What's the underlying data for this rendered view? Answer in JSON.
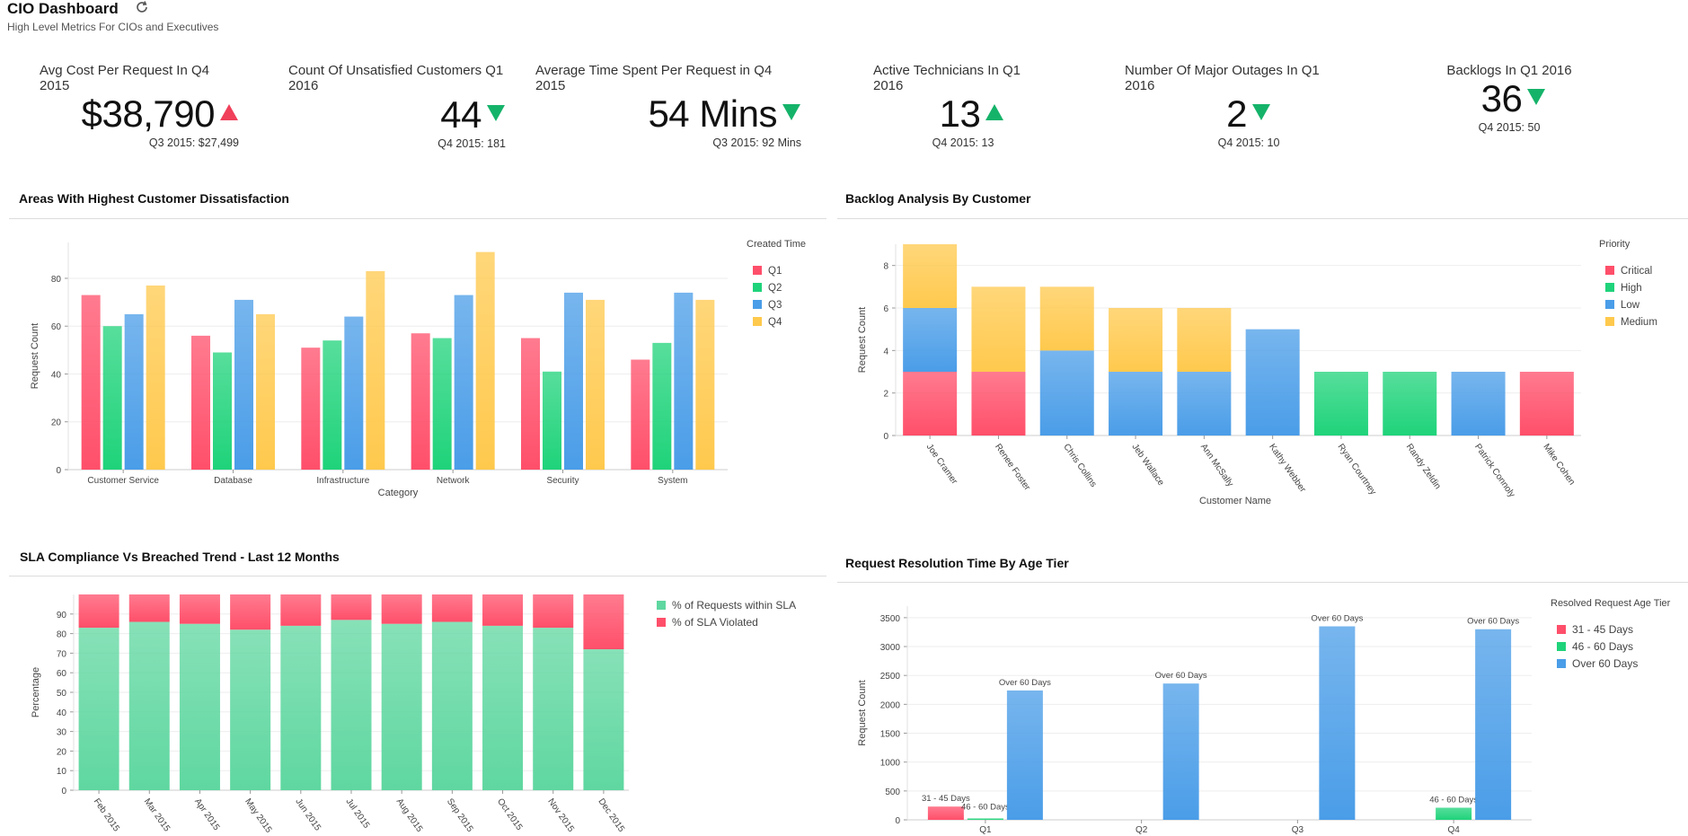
{
  "header": {
    "title": "CIO Dashboard",
    "subtitle": "High Level Metrics For CIOs and Executives"
  },
  "colors": {
    "q1": "#ff4f6a",
    "q2": "#1fd37a",
    "q3": "#4a9de8",
    "q4": "#ffc94d",
    "up": "#f0405a",
    "down": "#15b36a"
  },
  "kpis": [
    {
      "title": "Avg Cost Per Request In Q4 2015",
      "value": "$38,790",
      "trend": "up",
      "prev": "Q3 2015: $27,499"
    },
    {
      "title": "Count Of Unsatisfied Customers Q1 2016",
      "value": "44",
      "trend": "down",
      "prev": "Q4 2015: 181"
    },
    {
      "title": "Average Time Spent Per Request in Q4 2015",
      "value": "54 Mins",
      "trend": "down",
      "prev": "Q3 2015: 92 Mins"
    },
    {
      "title": "Active Technicians In Q1 2016",
      "value": "13",
      "trend": "up-green",
      "prev": "Q4 2015: 13"
    },
    {
      "title": "Number Of Major Outages In Q1 2016",
      "value": "2",
      "trend": "down",
      "prev": "Q4 2015: 10"
    },
    {
      "title": "Backlogs In Q1 2016",
      "value": "36",
      "trend": "down",
      "prev": "Q4 2015: 50"
    }
  ],
  "sections": {
    "dissatisfaction": "Areas With Highest Customer Dissatisfaction",
    "backlog": "Backlog Analysis By Customer",
    "sla": "SLA Compliance Vs Breached Trend - Last 12 Months",
    "resolution": "Request Resolution Time By Age Tier"
  },
  "chart_data": [
    {
      "type": "bar",
      "id": "dissatisfaction",
      "categories": [
        "Customer Service",
        "Database",
        "Infrastructure",
        "Network",
        "Security",
        "System"
      ],
      "series": [
        {
          "name": "Q1",
          "values": [
            73,
            56,
            51,
            57,
            55,
            46
          ]
        },
        {
          "name": "Q2",
          "values": [
            60,
            49,
            54,
            55,
            41,
            53
          ]
        },
        {
          "name": "Q3",
          "values": [
            65,
            71,
            64,
            73,
            74,
            74
          ]
        },
        {
          "name": "Q4",
          "values": [
            77,
            65,
            83,
            91,
            71,
            71
          ]
        }
      ],
      "xlabel": "Category",
      "ylabel": "Request Count",
      "ylim": [
        0,
        95
      ],
      "yticks": [
        "0",
        "20",
        "40",
        "60",
        "80"
      ],
      "legend_title": "Created Time"
    },
    {
      "type": "bar",
      "stacked": true,
      "id": "backlog",
      "categories": [
        "Joe Cramer",
        "Renee Foster",
        "Chris Collins",
        "Jeb Wallace",
        "Ann McSally",
        "Kathy Webber",
        "Ryan Courtney",
        "Randy Zeldin",
        "Patrick Connoly",
        "Mike Cohen"
      ],
      "series": [
        {
          "name": "Critical",
          "values": [
            3,
            3,
            0,
            0,
            0,
            0,
            0,
            0,
            0,
            3
          ]
        },
        {
          "name": "High",
          "values": [
            0,
            0,
            0,
            0,
            0,
            0,
            3,
            3,
            0,
            0
          ]
        },
        {
          "name": "Low",
          "values": [
            3,
            0,
            4,
            3,
            3,
            5,
            0,
            0,
            3,
            0
          ]
        },
        {
          "name": "Medium",
          "values": [
            3,
            4,
            3,
            3,
            3,
            0,
            0,
            0,
            0,
            0
          ]
        }
      ],
      "xlabel": "Customer Name",
      "ylabel": "Request Count",
      "ylim": [
        0,
        9
      ],
      "yticks": [
        "0",
        "2",
        "4",
        "6",
        "8"
      ],
      "legend_title": "Priority"
    },
    {
      "type": "bar",
      "stacked": true,
      "id": "sla",
      "categories": [
        "Feb 2015",
        "Mar 2015",
        "Apr 2015",
        "May 2015",
        "Jun 2015",
        "Jul 2015",
        "Aug 2015",
        "Sep 2015",
        "Oct 2015",
        "Nov 2015",
        "Dec 2015"
      ],
      "series": [
        {
          "name": "% of Requests within SLA",
          "values": [
            83,
            86,
            85,
            82,
            84,
            87,
            85,
            86,
            84,
            83,
            72
          ]
        },
        {
          "name": "% of SLA Violated",
          "values": [
            17,
            14,
            15,
            18,
            16,
            13,
            15,
            14,
            16,
            17,
            28
          ]
        }
      ],
      "ylabel": "Percentage",
      "ylim": [
        0,
        100
      ],
      "yticks": [
        "0",
        "10",
        "20",
        "30",
        "40",
        "50",
        "60",
        "70",
        "80",
        "90"
      ]
    },
    {
      "type": "bar",
      "id": "resolution",
      "categories": [
        "Q1",
        "Q2",
        "Q3",
        "Q4"
      ],
      "series": [
        {
          "name": "31 - 45 Days",
          "values": [
            230,
            0,
            0,
            0
          ]
        },
        {
          "name": "46 - 60 Days",
          "values": [
            25,
            0,
            0,
            210
          ]
        },
        {
          "name": "Over 60 Days",
          "values": [
            2240,
            2360,
            3350,
            3300
          ]
        }
      ],
      "ylabel": "Request Count",
      "ylim": [
        0,
        3700
      ],
      "yticks": [
        "0",
        "500",
        "1000",
        "1500",
        "2000",
        "2500",
        "3000",
        "3500"
      ],
      "legend_title": "Resolved Request Age Tier",
      "data_labels": [
        "31 - 45 Days",
        "46 - 60 Days",
        "Over 60 Days",
        "Over 60 Days",
        "Over 60 Days",
        "46 - 60 Days",
        "Over 60 Days"
      ]
    }
  ]
}
